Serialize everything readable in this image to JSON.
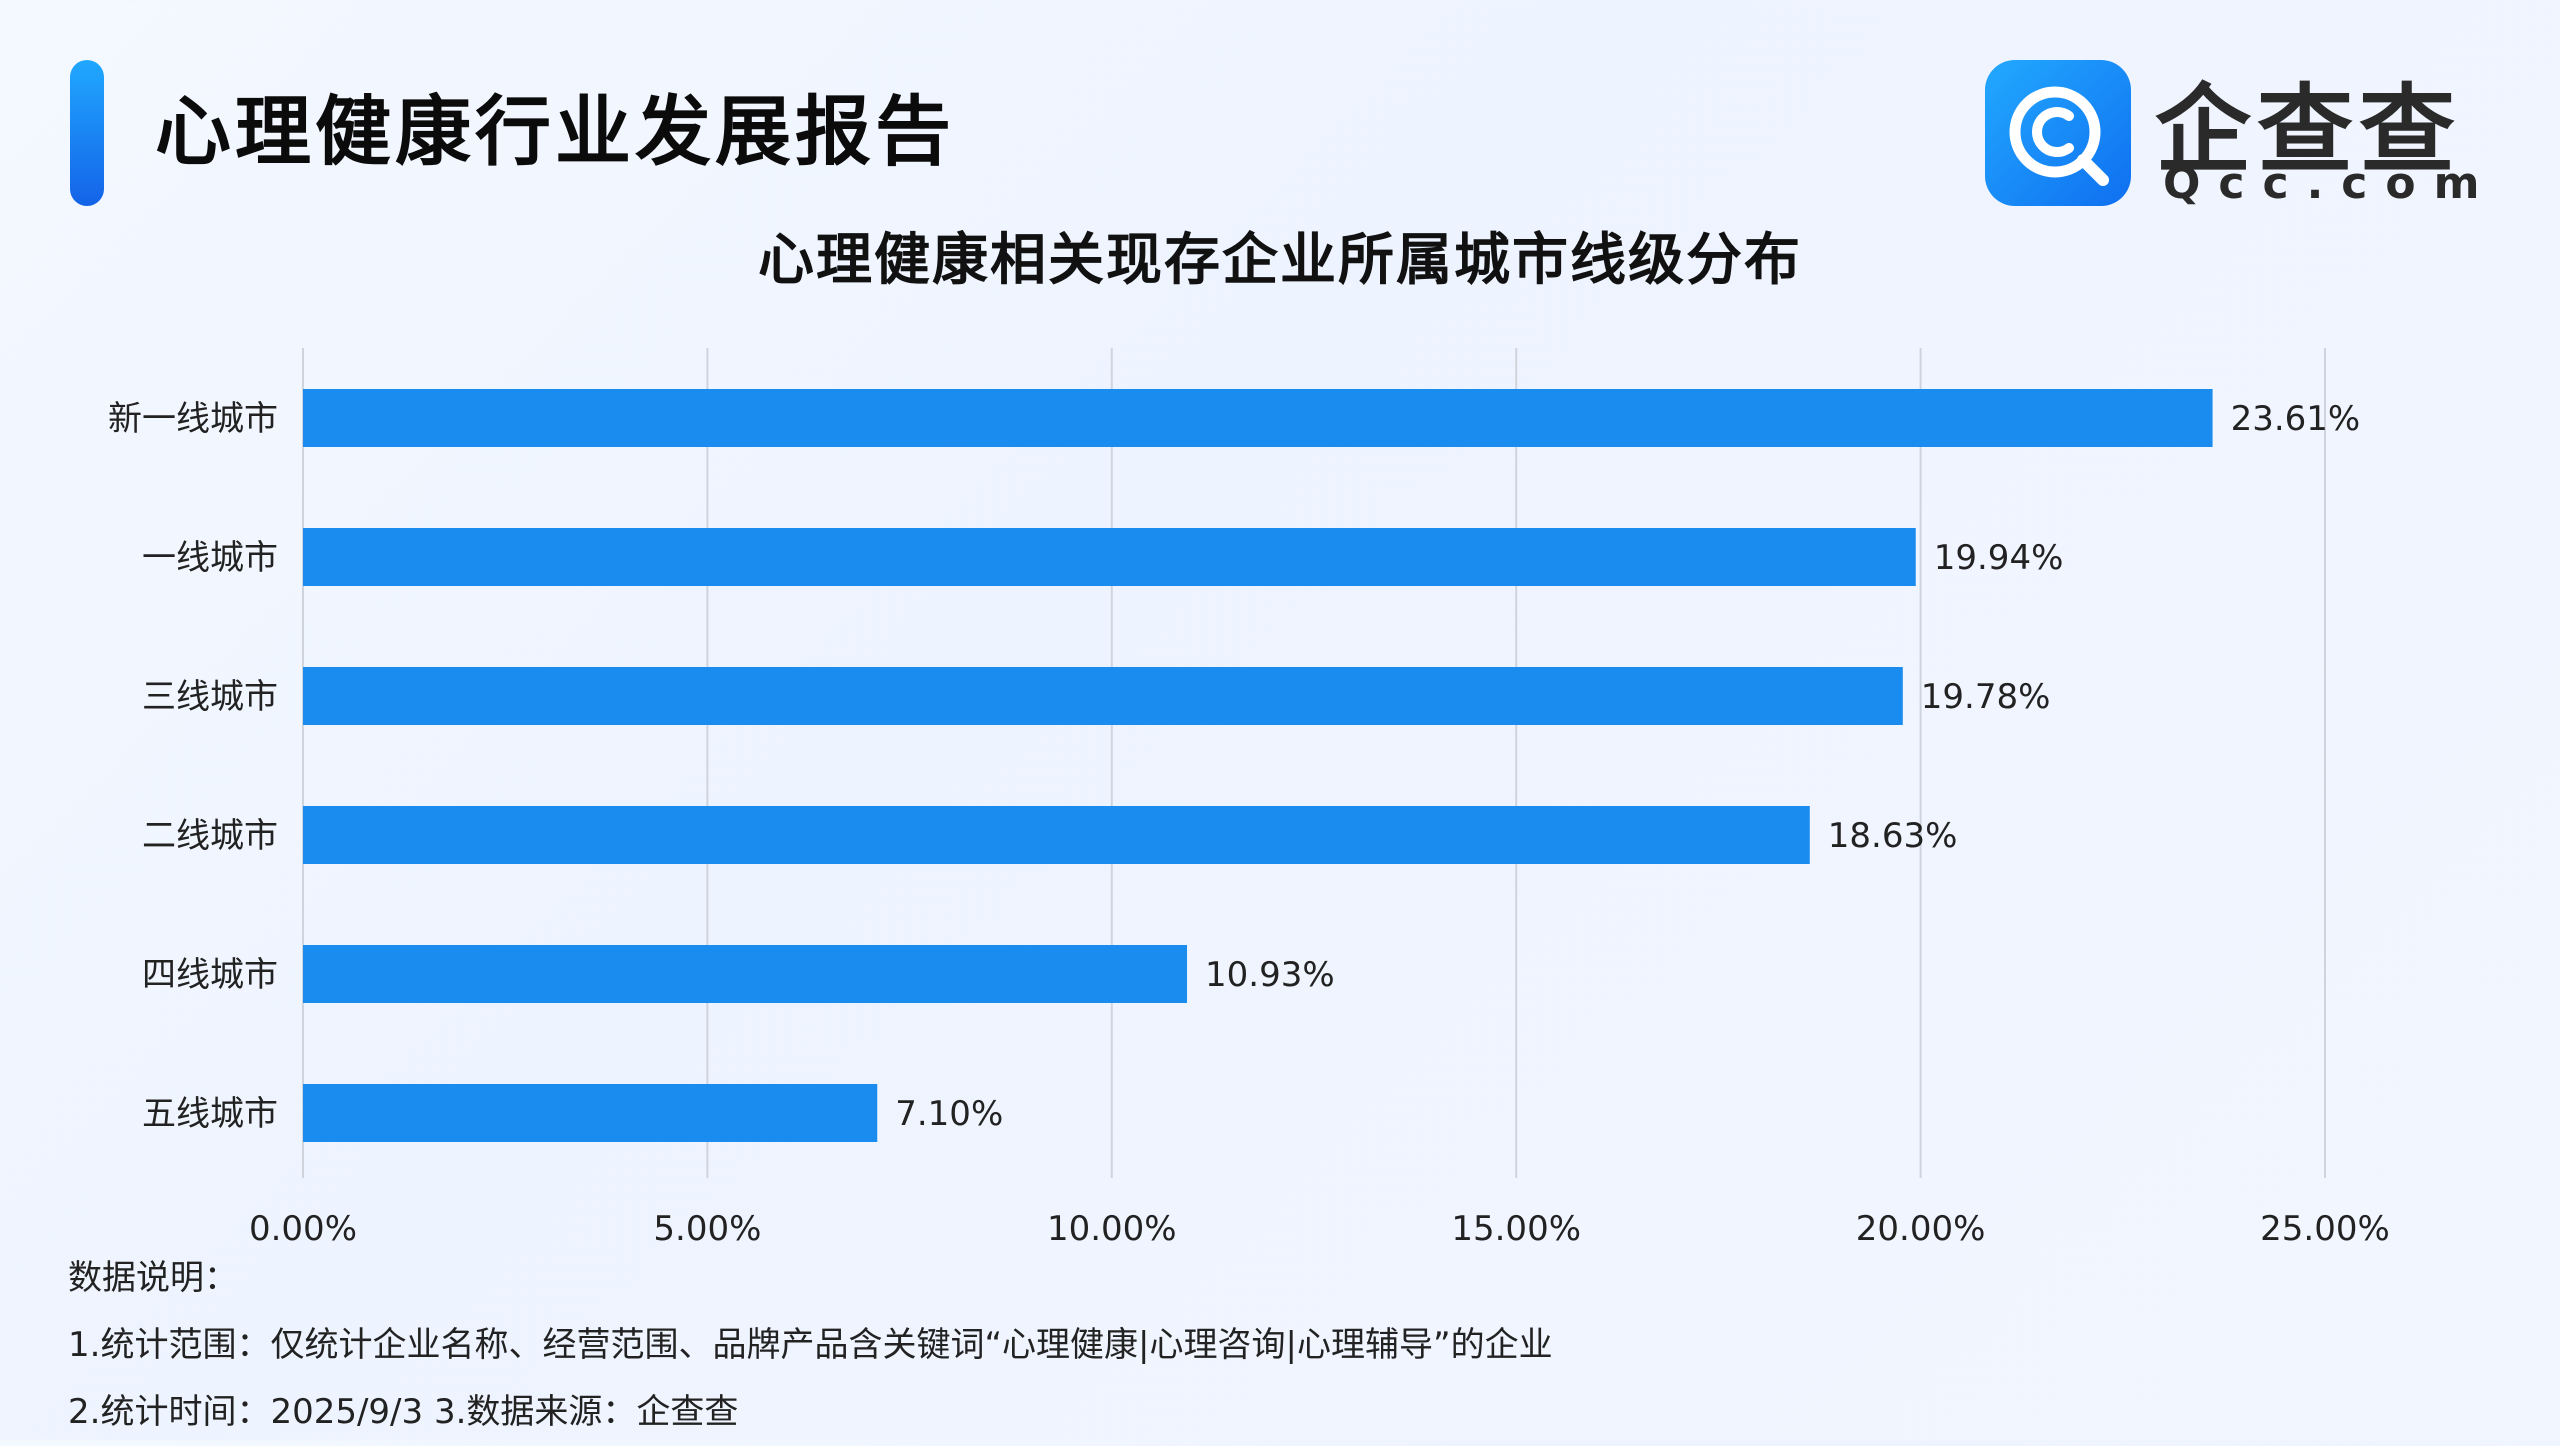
{
  "header": {
    "report_title": "心理健康行业发展报告",
    "logo_cn": "企查查",
    "logo_en": "Qcc.com",
    "accent_color": "#1a8cf0"
  },
  "chart_data": {
    "type": "bar",
    "orientation": "horizontal",
    "title": "心理健康相关现存企业所属城市线级分布",
    "categories": [
      "新一线城市",
      "一线城市",
      "三线城市",
      "二线城市",
      "四线城市",
      "五线城市"
    ],
    "values": [
      23.61,
      19.94,
      19.78,
      18.63,
      10.93,
      7.1
    ],
    "value_labels": [
      "23.61%",
      "19.94%",
      "19.78%",
      "18.63%",
      "10.93%",
      "7.10%"
    ],
    "xlim": [
      0,
      25
    ],
    "x_ticks": [
      0,
      5,
      10,
      15,
      20,
      25
    ],
    "x_tick_labels": [
      "0.00%",
      "5.00%",
      "10.00%",
      "15.00%",
      "20.00%",
      "25.00%"
    ],
    "xlabel": "",
    "ylabel": "",
    "grid": "vertical",
    "bar_color": "#1a8cf0"
  },
  "notes": {
    "heading": "数据说明：",
    "line1": "1.统计范围：仅统计企业名称、经营范围、品牌产品含关键词“心理健康|心理咨询|心理辅导”的企业",
    "line2": " 2.统计时间：2025/9/3  3.数据来源：企查查"
  }
}
